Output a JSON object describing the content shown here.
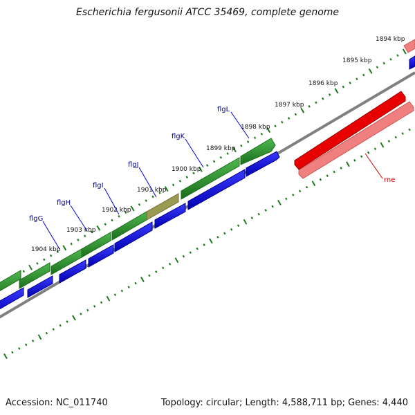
{
  "title": "Escherichia fergusonii ATCC 35469, complete genome",
  "footer": {
    "accession": "Accession: NC_011740",
    "summary": "Topology: circular; Length: 4,588,711 bp; Genes: 4,440"
  },
  "scale_labels": [
    "1894 kbp",
    "1895 kbp",
    "1896 kbp",
    "1897 kbp",
    "1898 kbp",
    "1899 kbp",
    "1900 kbp",
    "1901 kbp",
    "1902 kbp",
    "1903 kbp",
    "1904 kbp"
  ],
  "genes": [
    {
      "name": "flgG",
      "color": "#00008b"
    },
    {
      "name": "flgH",
      "color": "#00008b"
    },
    {
      "name": "flgI",
      "color": "#00008b"
    },
    {
      "name": "flgJ",
      "color": "#00008b"
    },
    {
      "name": "flgK",
      "color": "#00008b"
    },
    {
      "name": "flgL",
      "color": "#00008b"
    },
    {
      "name": "rne",
      "color": "#cc0000"
    }
  ],
  "colors": {
    "cds_green": "#228b22",
    "cds_blue": "#0000ee",
    "cds_red": "#ee0000",
    "cds_pink": "#f08080",
    "backbone": "#777777",
    "tick_green": "#1a7a1a"
  }
}
